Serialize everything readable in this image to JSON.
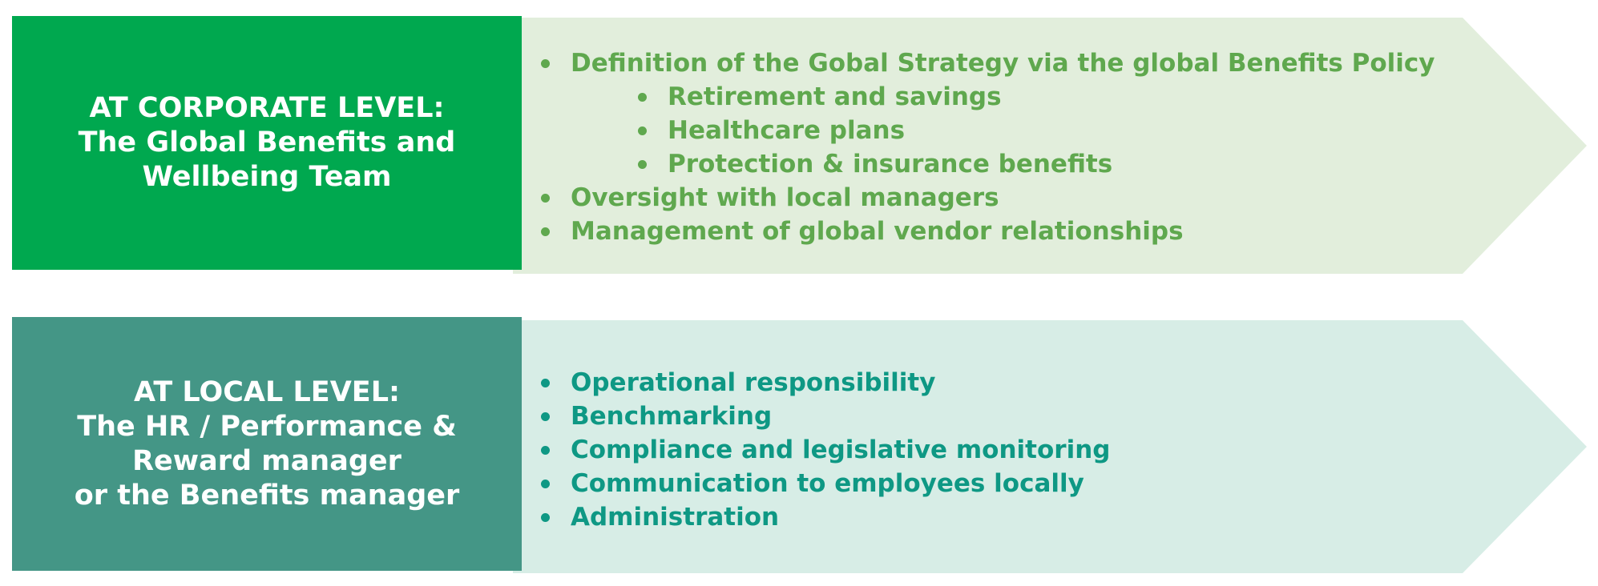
{
  "colors": {
    "corporate_box": "#00A84F",
    "corporate_arrow": "#E2EEDC",
    "corporate_text": "#5FA84E",
    "local_box": "#449686",
    "local_arrow": "#D7EDE6",
    "local_text": "#0E9884"
  },
  "corporate": {
    "label_lines": [
      "AT CORPORATE LEVEL:",
      "The Global Benefits and",
      "Wellbeing Team"
    ],
    "items": [
      {
        "text": "Definition of the Gobal Strategy via the global Benefits Policy",
        "level": 0
      },
      {
        "text": "Retirement and savings",
        "level": 1
      },
      {
        "text": "Healthcare plans",
        "level": 1
      },
      {
        "text": "Protection & insurance benefits",
        "level": 1
      },
      {
        "text": "Oversight with local managers",
        "level": 0
      },
      {
        "text": "Management of global vendor relationships",
        "level": 0
      }
    ]
  },
  "local": {
    "label_lines": [
      "AT LOCAL LEVEL:",
      "The HR / Performance &",
      "Reward manager",
      "or the Benefits manager"
    ],
    "items": [
      {
        "text": "Operational responsibility",
        "level": 0
      },
      {
        "text": "Benchmarking",
        "level": 0
      },
      {
        "text": "Compliance and legislative monitoring",
        "level": 0
      },
      {
        "text": "Communication to employees locally",
        "level": 0
      },
      {
        "text": "Administration",
        "level": 0
      }
    ]
  }
}
